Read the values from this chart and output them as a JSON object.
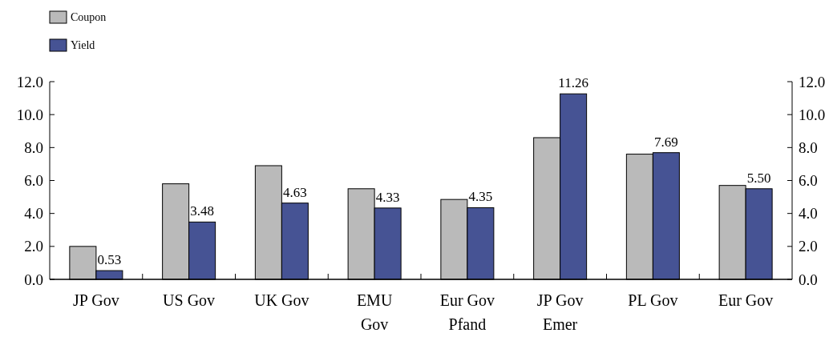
{
  "chart_data": {
    "type": "bar",
    "categories": [
      "JP Gov",
      "US Gov",
      "UK Gov",
      "EMU Gov",
      "Eur Gov Pfand",
      "JP Gov Emer",
      "PL Gov",
      "Eur Gov"
    ],
    "series": [
      {
        "name": "Coupon",
        "color": "#bababa",
        "values": [
          2.0,
          5.8,
          6.9,
          5.5,
          4.85,
          8.6,
          7.6,
          5.7
        ]
      },
      {
        "name": "Yield",
        "color": "#465394",
        "values": [
          0.53,
          3.48,
          4.63,
          4.33,
          4.35,
          11.26,
          7.69,
          5.5
        ],
        "value_labels": [
          "0.53",
          "3.48",
          "4.63",
          "4.33",
          "4.35",
          "11.26",
          "7.69",
          "5.50"
        ]
      }
    ],
    "ylim": [
      0,
      12
    ],
    "yticks": [
      {
        "value": 0,
        "label": "0.0"
      },
      {
        "value": 2,
        "label": "2.0"
      },
      {
        "value": 4,
        "label": "4.0"
      },
      {
        "value": 6,
        "label": "6.0"
      },
      {
        "value": 8,
        "label": "8.0"
      },
      {
        "value": 10,
        "label": "10.0"
      },
      {
        "value": 12,
        "label": "12.0"
      }
    ],
    "y2lim": [
      0,
      12
    ],
    "y2ticks": [
      {
        "value": 0,
        "label": "0.0"
      },
      {
        "value": 2,
        "label": "2.0"
      },
      {
        "value": 4,
        "label": "4.0"
      },
      {
        "value": 6,
        "label": "6.0"
      },
      {
        "value": 8,
        "label": "8.0"
      },
      {
        "value": 10,
        "label": "10.0"
      },
      {
        "value": 12,
        "label": "12.0"
      }
    ],
    "legend": "top left",
    "grid": false
  }
}
